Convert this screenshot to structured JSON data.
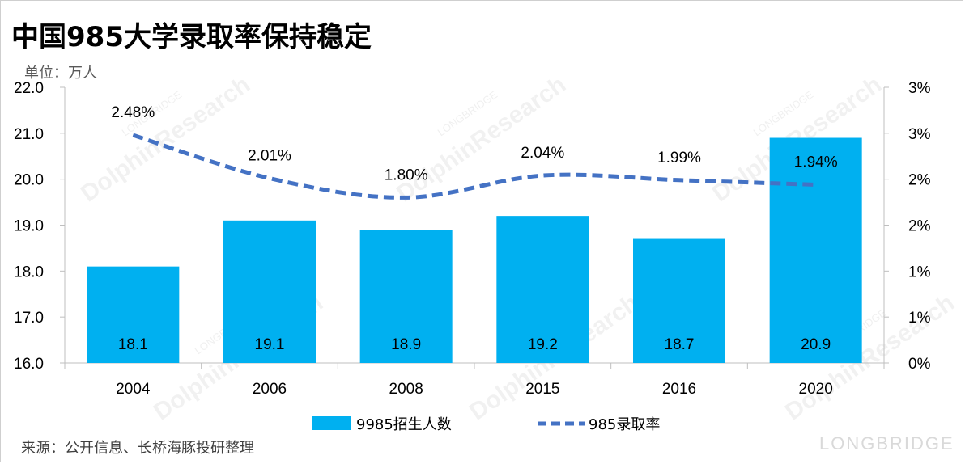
{
  "page": {
    "title": "中国985大学录取率保持稳定",
    "unit": "单位：万人",
    "source": "来源：公开信息、长桥海豚投研整理",
    "watermark_main": "DolphinResearch",
    "watermark_small": "LONGBRIDGE",
    "brand": "LONGBRIDGE"
  },
  "chart_data": {
    "type": "bar",
    "categories": [
      "2004",
      "2006",
      "2008",
      "2015",
      "2016",
      "2020"
    ],
    "series": [
      {
        "name": "9985招生人数",
        "type": "bar",
        "axis": "left",
        "color": "#00b0f0",
        "values": [
          18.1,
          19.1,
          18.9,
          19.2,
          18.7,
          20.9
        ],
        "labels": [
          "18.1",
          "19.1",
          "18.9",
          "19.2",
          "18.7",
          "20.9"
        ]
      },
      {
        "name": "985录取率",
        "type": "line",
        "style": "dashed",
        "axis": "right",
        "color": "#4472c4",
        "values": [
          2.48,
          2.01,
          1.8,
          2.04,
          1.99,
          1.94
        ],
        "labels": [
          "2.48%",
          "2.01%",
          "1.80%",
          "2.04%",
          "1.99%",
          "1.94%"
        ]
      }
    ],
    "y_left": {
      "ylim": [
        16.0,
        22.0
      ],
      "ticks": [
        "16.0",
        "17.0",
        "18.0",
        "19.0",
        "20.0",
        "21.0",
        "22.0"
      ]
    },
    "y_right": {
      "ylim": [
        0,
        3
      ],
      "ticks": [
        "0%",
        "1%",
        "1%",
        "2%",
        "2%",
        "3%",
        "3%"
      ]
    },
    "grid": false,
    "legend": "bottom"
  }
}
